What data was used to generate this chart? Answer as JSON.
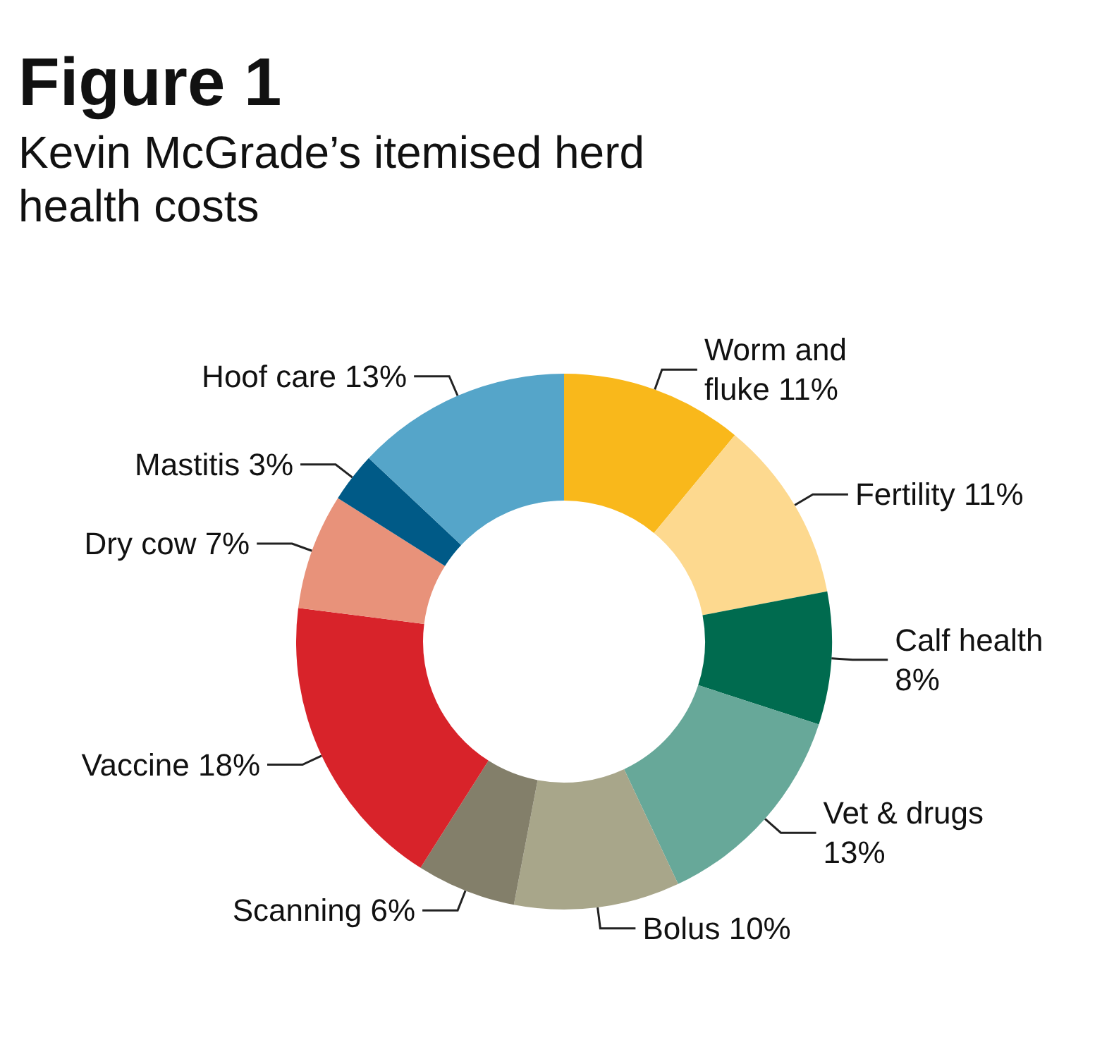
{
  "chart_data": {
    "type": "donut",
    "title": "Figure 1",
    "subtitle": "Kevin McGrade’s itemised herd health costs",
    "categories": [
      "Worm and fluke",
      "Fertility",
      "Calf health",
      "Vet & drugs",
      "Bolus",
      "Scanning",
      "Vaccine",
      "Dry cow",
      "Mastitis",
      "Hoof care"
    ],
    "values": [
      11,
      11,
      8,
      13,
      10,
      6,
      18,
      7,
      3,
      13
    ],
    "value_labels": [
      "11%",
      "11%",
      "8%",
      "13%",
      "10%",
      "6%",
      "18%",
      "7%",
      "3%",
      "13%"
    ],
    "colors": [
      "#f9b81b",
      "#fdd98f",
      "#006b4f",
      "#67a899",
      "#a8a68a",
      "#837f6a",
      "#d8232a",
      "#e8927a",
      "#005a87",
      "#55a5c9"
    ],
    "legend": false
  }
}
